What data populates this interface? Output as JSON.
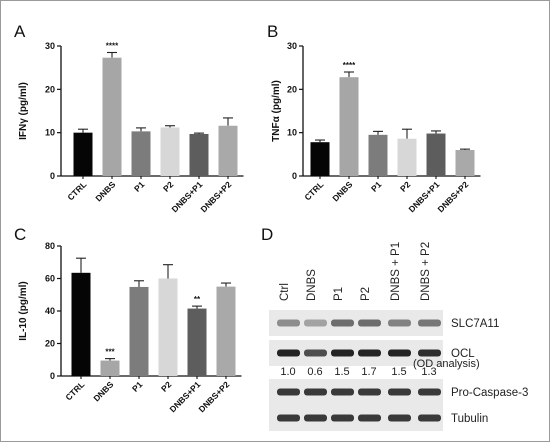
{
  "chart_data": [
    {
      "panel": "A",
      "type": "bar",
      "ylabel": "IFNγ (pg/ml)",
      "ylim": [
        0,
        30
      ],
      "yticks": [
        0,
        10,
        20,
        30
      ],
      "categories": [
        "CTRL",
        "DNBS",
        "P1",
        "P2",
        "DNBS+P1",
        "DNBS+P2"
      ],
      "values": [
        10.0,
        27.3,
        10.3,
        11.2,
        9.7,
        11.6
      ],
      "errors": [
        0.8,
        1.2,
        0.8,
        0.4,
        0.2,
        1.8
      ],
      "colors": [
        "#050505",
        "#a6a6a6",
        "#7c7c7c",
        "#d7d7d7",
        "#5d5d5d",
        "#a9a9a9"
      ],
      "annotations": [
        {
          "category": "DNBS",
          "text": "****"
        }
      ]
    },
    {
      "panel": "B",
      "type": "bar",
      "ylabel": "TNFα (pg/ml)",
      "ylim": [
        0,
        30
      ],
      "yticks": [
        0,
        10,
        20,
        30
      ],
      "categories": [
        "CTRL",
        "DNBS",
        "P1",
        "P2",
        "DNBS+P1",
        "DNBS+P2"
      ],
      "values": [
        7.8,
        22.8,
        9.5,
        8.6,
        9.8,
        6.0
      ],
      "errors": [
        0.5,
        1.2,
        0.8,
        2.2,
        0.6,
        0.2
      ],
      "colors": [
        "#050505",
        "#a6a6a6",
        "#7c7c7c",
        "#d7d7d7",
        "#5d5d5d",
        "#a9a9a9"
      ],
      "annotations": [
        {
          "category": "DNBS",
          "text": "****"
        }
      ]
    },
    {
      "panel": "C",
      "type": "bar",
      "ylabel": "IL-10 (pg/ml)",
      "ylim": [
        0,
        80
      ],
      "yticks": [
        0,
        20,
        40,
        60,
        80
      ],
      "categories": [
        "CTRL",
        "DNBS",
        "P1",
        "P2",
        "DNBS+P1",
        "DNBS+P2"
      ],
      "values": [
        63.5,
        9.5,
        54.8,
        60.0,
        41.5,
        55.0
      ],
      "errors": [
        9.0,
        1.2,
        3.8,
        8.5,
        1.5,
        2.2
      ],
      "colors": [
        "#050505",
        "#a6a6a6",
        "#7c7c7c",
        "#d7d7d7",
        "#5d5d5d",
        "#a9a9a9"
      ],
      "annotations": [
        {
          "category": "DNBS",
          "text": "***"
        },
        {
          "category": "DNBS+P1",
          "text": "**"
        }
      ]
    }
  ],
  "western_blot": {
    "panel": "D",
    "lanes": [
      "Ctrl",
      "DNBS",
      "P1",
      "P2",
      "DNBS + P1",
      "DNBS + P2"
    ],
    "bands": [
      {
        "label": "SLC7A11",
        "intensity": [
          0.45,
          0.35,
          0.6,
          0.6,
          0.5,
          0.55
        ]
      },
      {
        "label": "OCL",
        "intensity": [
          0.95,
          0.75,
          0.95,
          0.95,
          0.95,
          0.9
        ]
      },
      {
        "label": "Pro-Caspase-3",
        "intensity": [
          0.85,
          0.85,
          0.85,
          0.85,
          0.85,
          0.85
        ]
      },
      {
        "label": "Tubulin",
        "intensity": [
          0.85,
          0.85,
          0.85,
          0.85,
          0.85,
          0.85
        ]
      }
    ],
    "od_values": [
      "1.0",
      "0.6",
      "1.5",
      "1.7",
      "1.5",
      "1.3"
    ],
    "od_note": "(OD analysis)"
  }
}
